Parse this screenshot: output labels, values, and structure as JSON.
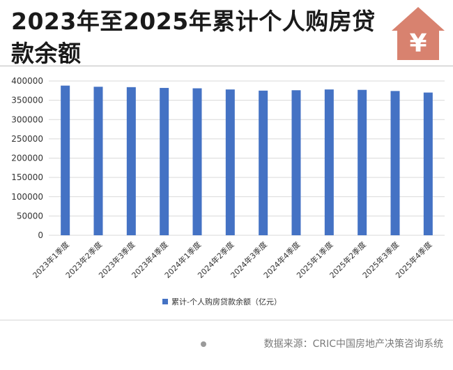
{
  "header": {
    "title": "2023年至2025年累计个人购房贷款余额",
    "icon": "house-yen-icon",
    "icon_symbol": "¥",
    "icon_color": "#d8826f"
  },
  "footer": {
    "source": "数据来源：CRIC中国房地产决策咨询系统"
  },
  "colors": {
    "bar": "#4472c4",
    "grid": "#d9d9d9"
  },
  "chart_data": {
    "type": "bar",
    "categories": [
      "2023年1季度",
      "2023年2季度",
      "2023年3季度",
      "2023年4季度",
      "2024年1季度",
      "2024年2季度",
      "2024年3季度",
      "2024年4季度",
      "2025年1季度",
      "2025年2季度",
      "2025年3季度",
      "2025年4季度"
    ],
    "series": [
      {
        "name": "累计-个人购房贷款余额（亿元）",
        "values": [
          388000,
          385000,
          384000,
          382000,
          381000,
          378000,
          375000,
          376000,
          378000,
          377000,
          374000,
          370000
        ]
      }
    ],
    "ylim": [
      0,
      400000
    ],
    "yticks": [
      0,
      50000,
      100000,
      150000,
      200000,
      250000,
      300000,
      350000,
      400000
    ],
    "grid": true,
    "legend": "bottom"
  }
}
